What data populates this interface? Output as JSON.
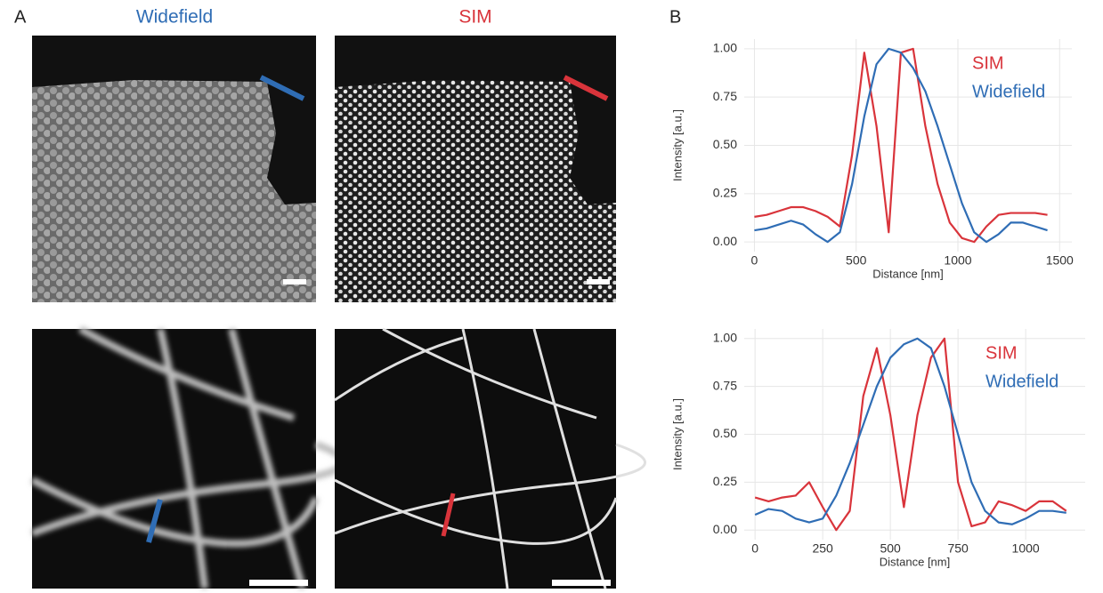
{
  "panel_labels": [
    "A",
    "B"
  ],
  "column_titles": [
    "Widefield",
    "SIM"
  ],
  "chart_data": [
    {
      "type": "line",
      "xlabel": "Distance [nm]",
      "ylabel": "Intensity [a.u.]",
      "x": [
        0,
        60,
        120,
        180,
        240,
        300,
        360,
        420,
        480,
        540,
        600,
        660,
        720,
        780,
        840,
        900,
        960,
        1020,
        1080,
        1140,
        1200,
        1260,
        1320,
        1380,
        1440
      ],
      "series": [
        {
          "name": "SIM",
          "color": "#d9343b",
          "values": [
            0.13,
            0.14,
            0.16,
            0.18,
            0.18,
            0.16,
            0.13,
            0.08,
            0.45,
            0.98,
            0.6,
            0.05,
            0.98,
            1.0,
            0.6,
            0.3,
            0.1,
            0.02,
            0.0,
            0.08,
            0.14,
            0.15,
            0.15,
            0.15,
            0.14
          ]
        },
        {
          "name": "Widefield",
          "color": "#2f6db5",
          "values": [
            0.06,
            0.07,
            0.09,
            0.11,
            0.09,
            0.04,
            0.0,
            0.05,
            0.3,
            0.65,
            0.92,
            1.0,
            0.98,
            0.9,
            0.78,
            0.6,
            0.4,
            0.2,
            0.05,
            0.0,
            0.04,
            0.1,
            0.1,
            0.08,
            0.06
          ]
        }
      ],
      "xlim": [
        -50,
        1560
      ],
      "ylim": [
        -0.05,
        1.05
      ],
      "xticks": [
        0,
        500,
        1000,
        1500
      ],
      "yticks": [
        {
          "value": 0,
          "label": "0.00"
        },
        0.25,
        {
          "value": 0.5,
          "label": "0.50"
        },
        0.75,
        {
          "value": 1,
          "label": "1.00"
        }
      ],
      "grid": true,
      "legend": "upper right"
    },
    {
      "type": "line",
      "xlabel": "Distance [nm]",
      "ylabel": "Intensity [a.u.]",
      "x": [
        0,
        50,
        100,
        150,
        200,
        250,
        300,
        350,
        400,
        450,
        500,
        550,
        600,
        650,
        700,
        750,
        800,
        850,
        900,
        950,
        1000,
        1050,
        1100,
        1150
      ],
      "series": [
        {
          "name": "SIM",
          "color": "#d9343b",
          "values": [
            0.17,
            0.15,
            0.17,
            0.18,
            0.25,
            0.12,
            0.0,
            0.1,
            0.7,
            0.95,
            0.6,
            0.12,
            0.6,
            0.9,
            1.0,
            0.25,
            0.02,
            0.04,
            0.15,
            0.13,
            0.1,
            0.15,
            0.15,
            0.1
          ]
        },
        {
          "name": "Widefield",
          "color": "#2f6db5",
          "values": [
            0.08,
            0.11,
            0.1,
            0.06,
            0.04,
            0.06,
            0.18,
            0.35,
            0.55,
            0.75,
            0.9,
            0.97,
            1.0,
            0.95,
            0.75,
            0.5,
            0.25,
            0.1,
            0.04,
            0.03,
            0.06,
            0.1,
            0.1,
            0.09
          ]
        }
      ],
      "xlim": [
        -40,
        1220
      ],
      "ylim": [
        -0.05,
        1.05
      ],
      "xticks": [
        0,
        250,
        500,
        750,
        1000
      ],
      "yticks": [
        {
          "value": 0,
          "label": "0.00"
        },
        0.25,
        {
          "value": 0.5,
          "label": "0.50"
        },
        0.75,
        {
          "value": 1,
          "label": "1.00"
        }
      ],
      "grid": true,
      "legend": "upper right"
    }
  ]
}
